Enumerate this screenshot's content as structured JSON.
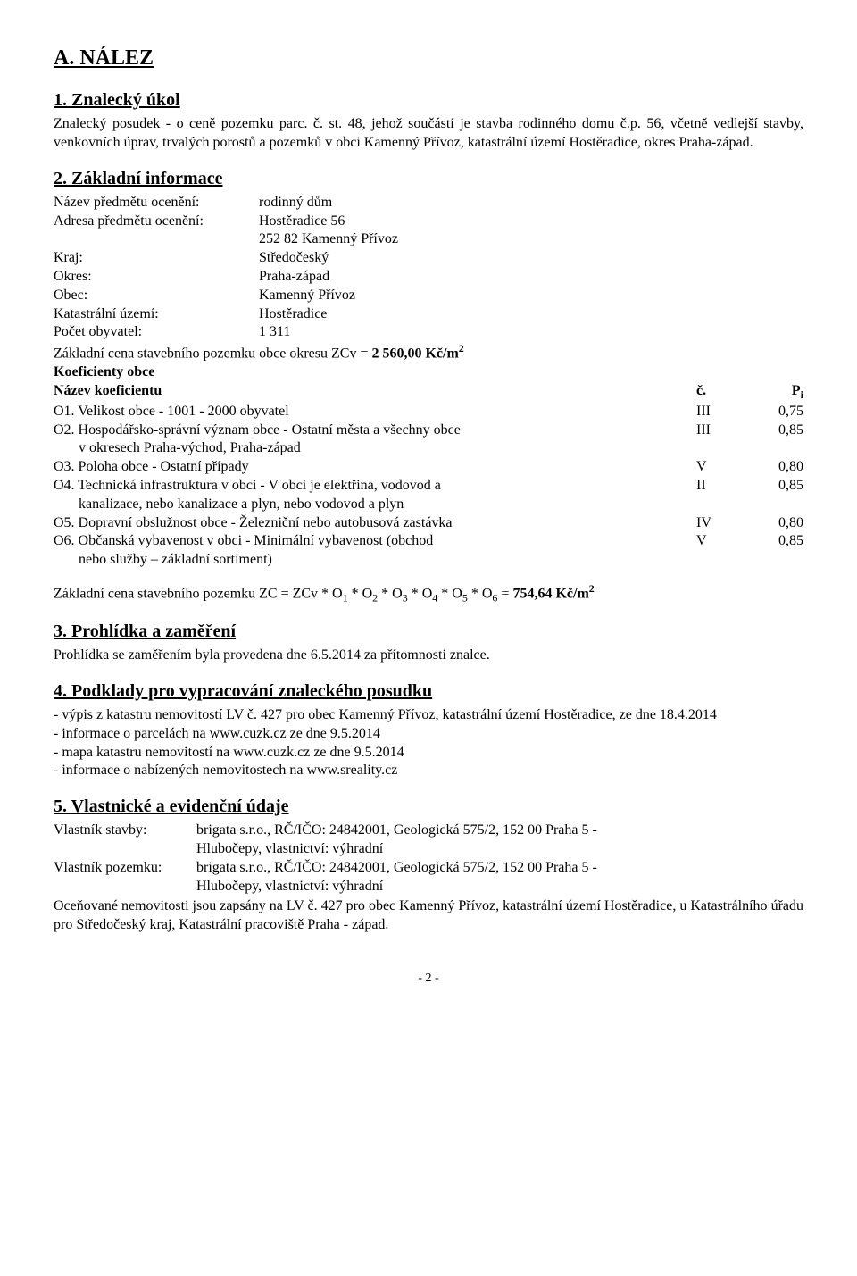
{
  "section_a": {
    "title": "A. NÁLEZ"
  },
  "s1": {
    "title": "1. Znalecký úkol",
    "text": "Znalecký posudek - o ceně pozemku parc. č. st. 48, jehož součástí je stavba rodinného domu č.p. 56, včetně vedlejší stavby, venkovních úprav, trvalých porostů a pozemků v obci Kamenný Přívoz, katastrální území Hostěradice, okres Praha-západ."
  },
  "s2": {
    "title": "2. Základní informace",
    "rows": {
      "nazev_predmetu": {
        "label": "Název předmětu ocenění:",
        "value": "rodinný dům"
      },
      "adresa1": {
        "label": "Adresa předmětu ocenění:",
        "value": "Hostěradice 56"
      },
      "adresa2": {
        "value": "252 82 Kamenný Přívoz"
      },
      "kraj": {
        "label": "Kraj:",
        "value": "Středočeský"
      },
      "okres": {
        "label": "Okres:",
        "value": "Praha-západ"
      },
      "obec": {
        "label": "Obec:",
        "value": "Kamenný Přívoz"
      },
      "ku": {
        "label": "Katastrální území:",
        "value": "Hostěradice"
      },
      "pocet": {
        "label": "Počet obyvatel:",
        "value": "1 311"
      }
    },
    "zakladni_cena": {
      "pre": "Základní cena stavebního pozemku obce okresu ZCv = ",
      "val": "2 560,00 Kč/m",
      "exp": "2"
    },
    "koef_title": "Koeficienty obce",
    "koef_header": {
      "name": "Název koeficientu",
      "c": "č.",
      "p": "P"
    },
    "koef_header_sub": "i",
    "koef": [
      {
        "name": "O1. Velikost obce - 1001 - 2000 obyvatel",
        "c": "III",
        "p": "0,75"
      },
      {
        "name": "O2. Hospodářsko-správní význam obce - Ostatní města a všechny obce",
        "sub": "v okresech Praha-východ, Praha-západ",
        "c": "III",
        "p": "0,85"
      },
      {
        "name": "O3. Poloha obce - Ostatní případy",
        "c": "V",
        "p": "0,80"
      },
      {
        "name": "O4. Technická infrastruktura v obci - V obci je elektřina, vodovod a",
        "sub": "kanalizace, nebo kanalizace a plyn, nebo vodovod a plyn",
        "c": "II",
        "p": "0,85"
      },
      {
        "name": "O5. Dopravní obslužnost obce - Železniční nebo autobusová zastávka",
        "c": "IV",
        "p": "0,80"
      },
      {
        "name": "O6. Občanská vybavenost v obci - Minimální vybavenost (obchod",
        "sub": "nebo služby – základní sortiment)",
        "c": "V",
        "p": "0,85"
      }
    ],
    "formula": {
      "pre": "Základní cena stavebního pozemku   ZC = ZCv * O",
      "parts": [
        "1",
        " * O",
        "2",
        " * O",
        "3",
        " * O",
        "4",
        " * O",
        "5",
        " * O",
        "6",
        " = "
      ],
      "val": "754,64 Kč/m",
      "exp": "2"
    }
  },
  "s3": {
    "title": "3. Prohlídka a zaměření",
    "text": "Prohlídka se zaměřením byla provedena dne 6.5.2014 za přítomnosti znalce."
  },
  "s4": {
    "title": "4. Podklady pro vypracování znaleckého posudku",
    "lines": [
      "- výpis z katastru nemovitostí LV č. 427 pro obec Kamenný Přívoz, katastrální území Hostěradice, ze dne 18.4.2014",
      "- informace o parcelách na www.cuzk.cz ze dne 9.5.2014",
      "- mapa katastru nemovitostí na www.cuzk.cz ze dne 9.5.2014",
      "- informace o nabízených nemovitostech na www.sreality.cz"
    ]
  },
  "s5": {
    "title": "5. Vlastnické a evidenční údaje",
    "vl_stavby": {
      "label": "Vlastník stavby:",
      "l1": "brigata s.r.o., RČ/IČO: 24842001, Geologická 575/2, 152 00 Praha 5 -",
      "l2": "Hlubočepy, vlastnictví: výhradní"
    },
    "vl_pozemku": {
      "label": "Vlastník pozemku:",
      "l1": "brigata s.r.o., RČ/IČO: 24842001, Geologická 575/2, 152 00 Praha 5 -",
      "l2": "Hlubočepy, vlastnictví: výhradní"
    },
    "text": "Oceňované nemovitosti jsou zapsány na LV č. 427 pro obec Kamenný Přívoz, katastrální území Hostěradice, u Katastrálního úřadu pro Středočeský kraj, Katastrální pracoviště Praha - západ."
  },
  "page": "- 2 -"
}
